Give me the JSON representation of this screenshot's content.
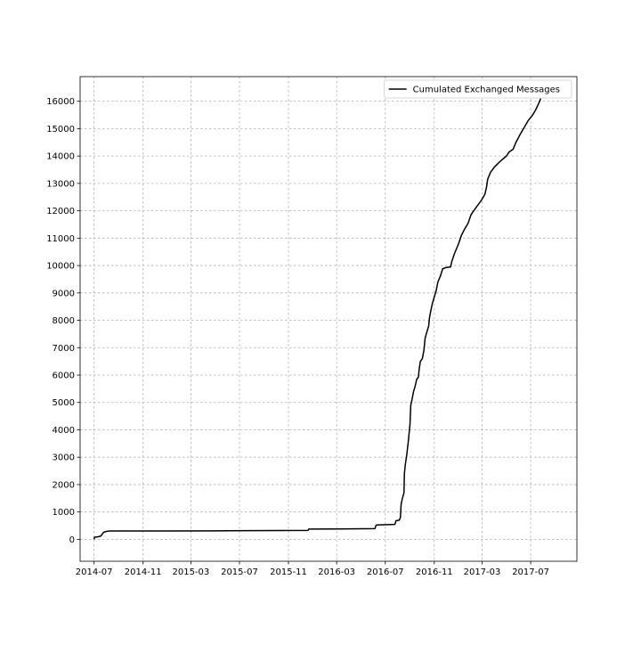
{
  "chart_data": {
    "type": "line",
    "title": "",
    "xlabel": "",
    "ylabel": "",
    "grid": true,
    "legend_position": "top-right",
    "xlim": [
      "2014-05-27",
      "2017-10-25"
    ],
    "ylim": [
      -800,
      16900
    ],
    "x_ticks": [
      "2014-07",
      "2014-11",
      "2015-03",
      "2015-07",
      "2015-11",
      "2016-03",
      "2016-07",
      "2016-11",
      "2017-03",
      "2017-07"
    ],
    "y_ticks": [
      0,
      1000,
      2000,
      3000,
      4000,
      5000,
      6000,
      7000,
      8000,
      9000,
      10000,
      11000,
      12000,
      13000,
      14000,
      15000,
      16000
    ],
    "series": [
      {
        "name": "Cumulated Exchanged Messages",
        "color": "#000000",
        "points": [
          [
            "2014-07-01",
            0
          ],
          [
            "2014-07-02",
            80
          ],
          [
            "2014-07-10",
            90
          ],
          [
            "2014-07-18",
            120
          ],
          [
            "2014-07-22",
            200
          ],
          [
            "2014-07-25",
            260
          ],
          [
            "2014-08-01",
            290
          ],
          [
            "2014-08-10",
            305
          ],
          [
            "2014-09-01",
            305
          ],
          [
            "2015-01-01",
            308
          ],
          [
            "2015-05-01",
            310
          ],
          [
            "2015-08-01",
            318
          ],
          [
            "2015-12-20",
            325
          ],
          [
            "2015-12-22",
            375
          ],
          [
            "2016-03-01",
            380
          ],
          [
            "2016-06-05",
            390
          ],
          [
            "2016-06-08",
            520
          ],
          [
            "2016-06-20",
            530
          ],
          [
            "2016-07-25",
            545
          ],
          [
            "2016-07-28",
            680
          ],
          [
            "2016-08-05",
            700
          ],
          [
            "2016-08-08",
            800
          ],
          [
            "2016-08-09",
            1100
          ],
          [
            "2016-08-10",
            1300
          ],
          [
            "2016-08-13",
            1500
          ],
          [
            "2016-08-17",
            1700
          ],
          [
            "2016-08-18",
            2400
          ],
          [
            "2016-08-20",
            2700
          ],
          [
            "2016-08-24",
            3100
          ],
          [
            "2016-08-28",
            3600
          ],
          [
            "2016-09-01",
            4200
          ],
          [
            "2016-09-03",
            4900
          ],
          [
            "2016-09-06",
            5100
          ],
          [
            "2016-09-10",
            5400
          ],
          [
            "2016-09-14",
            5600
          ],
          [
            "2016-09-18",
            5850
          ],
          [
            "2016-09-22",
            5920
          ],
          [
            "2016-09-24",
            6200
          ],
          [
            "2016-09-27",
            6500
          ],
          [
            "2016-10-02",
            6600
          ],
          [
            "2016-10-06",
            6900
          ],
          [
            "2016-10-09",
            7350
          ],
          [
            "2016-10-14",
            7600
          ],
          [
            "2016-10-18",
            7800
          ],
          [
            "2016-10-20",
            8100
          ],
          [
            "2016-10-24",
            8400
          ],
          [
            "2016-10-27",
            8600
          ],
          [
            "2016-11-02",
            8900
          ],
          [
            "2016-11-06",
            9100
          ],
          [
            "2016-11-10",
            9400
          ],
          [
            "2016-11-16",
            9600
          ],
          [
            "2016-11-22",
            9880
          ],
          [
            "2016-12-01",
            9930
          ],
          [
            "2016-12-12",
            9950
          ],
          [
            "2016-12-15",
            10150
          ],
          [
            "2016-12-22",
            10450
          ],
          [
            "2017-01-01",
            10800
          ],
          [
            "2017-01-08",
            11100
          ],
          [
            "2017-01-15",
            11300
          ],
          [
            "2017-01-25",
            11550
          ],
          [
            "2017-02-01",
            11850
          ],
          [
            "2017-02-08",
            12000
          ],
          [
            "2017-02-18",
            12200
          ],
          [
            "2017-02-28",
            12400
          ],
          [
            "2017-03-08",
            12600
          ],
          [
            "2017-03-12",
            12850
          ],
          [
            "2017-03-15",
            13150
          ],
          [
            "2017-03-22",
            13400
          ],
          [
            "2017-04-01",
            13600
          ],
          [
            "2017-04-15",
            13800
          ],
          [
            "2017-05-01",
            14000
          ],
          [
            "2017-05-08",
            14150
          ],
          [
            "2017-05-18",
            14250
          ],
          [
            "2017-05-25",
            14500
          ],
          [
            "2017-06-05",
            14800
          ],
          [
            "2017-06-15",
            15050
          ],
          [
            "2017-06-25",
            15300
          ],
          [
            "2017-07-06",
            15500
          ],
          [
            "2017-07-14",
            15700
          ],
          [
            "2017-07-22",
            15950
          ],
          [
            "2017-07-26",
            16100
          ]
        ]
      }
    ]
  }
}
